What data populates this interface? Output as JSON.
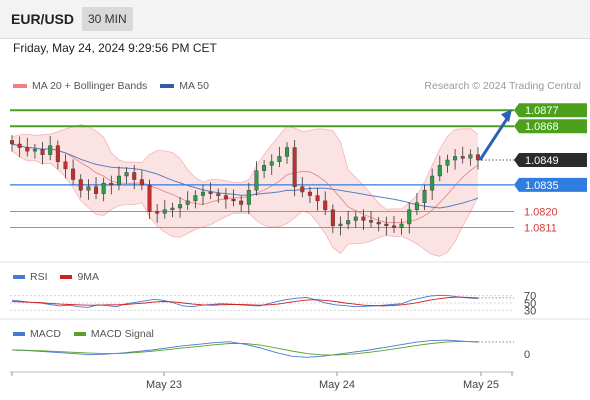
{
  "header": {
    "symbol": "EUR/USD",
    "timeframe": "30 MIN",
    "datetime": "Friday, May 24, 2024 9:29:56 PM CET"
  },
  "legend": {
    "items": [
      {
        "label": "MA 20 + Bollinger Bands",
        "color": "#f08080"
      },
      {
        "label": "MA 50",
        "color": "#2f5d9e"
      }
    ],
    "source": "Research © 2024 Trading Central"
  },
  "chart_data": [
    {
      "type": "candlestick",
      "ylim": [
        1.0795,
        1.0885
      ],
      "levels": [
        {
          "value": 1.0877,
          "label": "1.0877",
          "style": "resistance",
          "color": "#4ca01e"
        },
        {
          "value": 1.0868,
          "label": "1.0868",
          "style": "resistance",
          "color": "#4ca01e"
        },
        {
          "value": 1.0849,
          "label": "1.0849",
          "style": "last-price",
          "color": "#2b2b2b"
        },
        {
          "value": 1.0835,
          "label": "1.0835",
          "style": "pivot",
          "color": "#2f7de1"
        },
        {
          "value": 1.082,
          "label": "1.0820",
          "style": "support",
          "color": "#e8737a"
        },
        {
          "value": 1.0811,
          "label": "1.0811",
          "style": "support",
          "color": "#e8737a"
        }
      ],
      "x_ticks": [
        "May 23",
        "May 24",
        "May 25"
      ],
      "close_series": [
        1.0858,
        1.0856,
        1.0854,
        1.0855,
        1.0852,
        1.0857,
        1.0848,
        1.0844,
        1.0838,
        1.0832,
        1.0834,
        1.083,
        1.0836,
        1.0835,
        1.084,
        1.0842,
        1.0838,
        1.0835,
        1.082,
        1.0819,
        1.0821,
        1.0822,
        1.0824,
        1.0826,
        1.0829,
        1.0831,
        1.083,
        1.0829,
        1.0827,
        1.0826,
        1.0824,
        1.0832,
        1.0843,
        1.0846,
        1.0848,
        1.0851,
        1.0856,
        1.0834,
        1.0831,
        1.0829,
        1.0826,
        1.0821,
        1.0812,
        1.0813,
        1.0815,
        1.0817,
        1.0815,
        1.0814,
        1.0813,
        1.0812,
        1.0811,
        1.0813,
        1.0821,
        1.0825,
        1.0832,
        1.084,
        1.0846,
        1.0849,
        1.0851,
        1.085,
        1.0852,
        1.0849
      ],
      "projection": {
        "from": 1.0849,
        "to": 1.0877
      }
    },
    {
      "type": "line",
      "name": "RSI",
      "legend": [
        {
          "label": "RSI",
          "color": "#4a78d0"
        },
        {
          "label": "9MA",
          "color": "#d02020"
        }
      ],
      "y_ticks": [
        "70",
        "50",
        "30"
      ],
      "series": [
        {
          "name": "RSI",
          "values": [
            58,
            55,
            52,
            50,
            46,
            42,
            44,
            40,
            38,
            45,
            43,
            40,
            48,
            52,
            56,
            60,
            57,
            50,
            42,
            40,
            44,
            46,
            48,
            47,
            45,
            43,
            42,
            48,
            55,
            60,
            63,
            65,
            58,
            50,
            45,
            43,
            40,
            41,
            42,
            44,
            46,
            48,
            58,
            64,
            69,
            71,
            70,
            66,
            64,
            62
          ]
        },
        {
          "name": "9MA",
          "values": [
            54,
            53,
            52,
            51,
            49,
            47,
            46,
            45,
            44,
            44,
            45,
            45,
            46,
            48,
            50,
            53,
            54,
            53,
            50,
            47,
            45,
            44,
            45,
            46,
            46,
            45,
            44,
            45,
            47,
            51,
            55,
            58,
            59,
            57,
            54,
            50,
            47,
            44,
            43,
            42,
            43,
            45,
            48,
            53,
            58,
            62,
            65,
            66,
            65,
            64
          ]
        }
      ]
    },
    {
      "type": "line",
      "name": "MACD",
      "legend": [
        {
          "label": "MACD",
          "color": "#4a78d0"
        },
        {
          "label": "MACD Signal",
          "color": "#5aa02c"
        }
      ],
      "y_ticks": [
        "0"
      ],
      "series": [
        {
          "name": "MACD",
          "values": [
            0.0,
            -0.2,
            -0.6,
            -1.0,
            -1.4,
            -1.8,
            -1.6,
            -1.2,
            -0.6,
            0.0,
            0.8,
            1.6,
            2.2,
            2.8,
            3.2,
            2.2,
            0.8,
            -1.0,
            -2.4,
            -2.8,
            -2.4,
            -1.6,
            -0.8,
            0.0,
            1.0,
            2.0,
            3.0,
            3.6,
            3.8,
            3.4,
            3.0
          ]
        },
        {
          "name": "MACD Signal",
          "values": [
            0.0,
            -0.1,
            -0.3,
            -0.6,
            -0.9,
            -1.2,
            -1.4,
            -1.3,
            -1.0,
            -0.5,
            0.1,
            0.8,
            1.4,
            2.0,
            2.5,
            2.5,
            1.9,
            0.8,
            -0.4,
            -1.4,
            -1.9,
            -1.9,
            -1.5,
            -0.9,
            -0.1,
            0.8,
            1.7,
            2.5,
            3.1,
            3.3,
            3.2
          ]
        }
      ]
    }
  ]
}
